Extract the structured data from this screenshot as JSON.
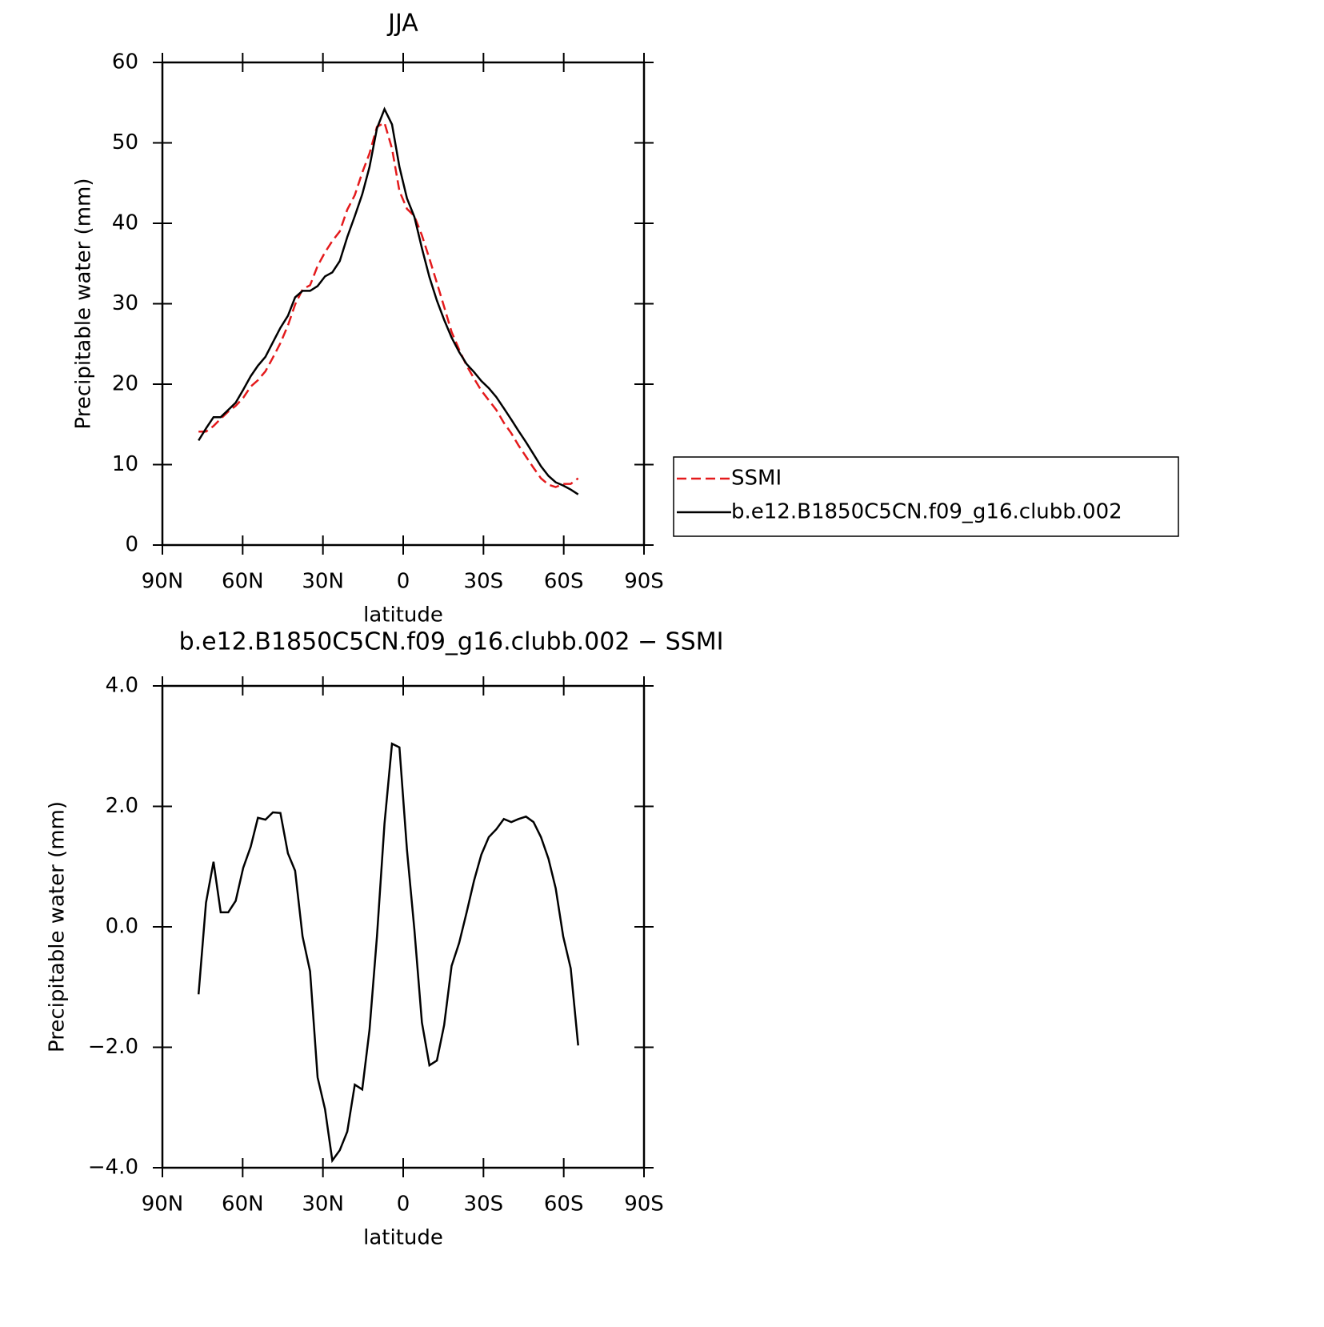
{
  "chart_data": [
    {
      "type": "line",
      "title": "JJA",
      "xlabel": "latitude",
      "ylabel": "Precipitable water (mm)",
      "x": [
        76.5,
        73.7,
        70.9,
        68.2,
        65.4,
        62.6,
        59.8,
        57.0,
        54.3,
        51.5,
        48.7,
        45.9,
        43.1,
        40.4,
        37.6,
        34.8,
        32.0,
        29.2,
        26.5,
        23.7,
        20.9,
        18.1,
        15.3,
        12.6,
        9.8,
        7.0,
        4.2,
        1.4,
        -1.4,
        -4.2,
        -7.0,
        -9.8,
        -12.6,
        -15.3,
        -18.1,
        -20.9,
        -23.7,
        -26.5,
        -29.2,
        -32.0,
        -34.8,
        -37.6,
        -40.4,
        -43.1,
        -45.9,
        -48.7,
        -51.5,
        -54.3,
        -57.0,
        -59.8,
        -62.6,
        -65.4
      ],
      "series": [
        {
          "name": "SSMI",
          "color": "#e41a1c",
          "dashed": true,
          "values": [
            14.1,
            14.1,
            14.8,
            15.7,
            16.6,
            17.3,
            18.3,
            19.7,
            20.5,
            21.6,
            23.3,
            25.1,
            27.3,
            29.9,
            31.8,
            32.3,
            34.7,
            36.4,
            37.8,
            39.0,
            41.7,
            43.5,
            46.3,
            48.7,
            52.0,
            52.5,
            49.3,
            44.0,
            41.8,
            40.9,
            38.5,
            35.6,
            32.6,
            29.6,
            26.5,
            24.3,
            22.3,
            20.7,
            19.2,
            18.0,
            16.8,
            15.2,
            13.9,
            12.4,
            11.0,
            9.6,
            8.3,
            7.5,
            7.2,
            7.6,
            7.6,
            8.3
          ]
        },
        {
          "name": "b.e12.B1850C5CN.f09_g16.clubb.002",
          "color": "#000000",
          "dashed": false,
          "values": [
            13.0,
            14.5,
            15.9,
            15.9,
            16.8,
            17.7,
            19.3,
            21.0,
            22.3,
            23.4,
            25.2,
            27.0,
            28.5,
            30.8,
            31.6,
            31.6,
            32.2,
            33.4,
            33.9,
            35.3,
            38.3,
            40.9,
            43.6,
            47.0,
            51.8,
            54.2,
            52.3,
            47.0,
            43.1,
            40.8,
            36.9,
            33.3,
            30.4,
            28.0,
            25.8,
            24.0,
            22.5,
            21.5,
            20.4,
            19.5,
            18.4,
            17.0,
            15.6,
            14.2,
            12.8,
            11.3,
            9.8,
            8.6,
            7.8,
            7.4,
            6.9,
            6.3
          ]
        }
      ],
      "xlim": [
        90,
        -90
      ],
      "xticks": [
        {
          "value": 90,
          "label": "90N"
        },
        {
          "value": 60,
          "label": "60N"
        },
        {
          "value": 30,
          "label": "30N"
        },
        0,
        {
          "value": -30,
          "label": "30S"
        },
        {
          "value": -60,
          "label": "60S"
        },
        {
          "value": -90,
          "label": "90S"
        }
      ],
      "ylim": [
        0,
        60
      ],
      "yticks": [
        0,
        10,
        20,
        30,
        40,
        50,
        60
      ],
      "legend": "right"
    },
    {
      "type": "line",
      "title": "b.e12.B1850C5CN.f09_g16.clubb.002 − SSMI",
      "xlabel": "latitude",
      "ylabel": "Precipitable water (mm)",
      "x": [
        76.5,
        73.7,
        70.9,
        68.2,
        65.4,
        62.6,
        59.8,
        57.0,
        54.3,
        51.5,
        48.7,
        45.9,
        43.1,
        40.4,
        37.6,
        34.8,
        32.0,
        29.2,
        26.5,
        23.7,
        20.9,
        18.1,
        15.3,
        12.6,
        9.8,
        7.0,
        4.2,
        1.4,
        -1.4,
        -4.2,
        -7.0,
        -9.8,
        -12.6,
        -15.3,
        -18.1,
        -20.9,
        -23.7,
        -26.5,
        -29.2,
        -32.0,
        -34.8,
        -37.6,
        -40.4,
        -43.1,
        -45.9,
        -48.7,
        -51.5,
        -54.3,
        -57.0,
        -59.8,
        -62.6,
        -65.4
      ],
      "series": [
        {
          "color": "#000000",
          "dashed": false,
          "values": [
            -1.12,
            0.4,
            1.08,
            0.24,
            0.24,
            0.43,
            0.98,
            1.33,
            1.81,
            1.78,
            1.9,
            1.89,
            1.22,
            0.93,
            -0.16,
            -0.74,
            -2.5,
            -3.03,
            -3.88,
            -3.71,
            -3.4,
            -2.62,
            -2.7,
            -1.71,
            -0.16,
            1.71,
            3.04,
            2.98,
            1.28,
            -0.05,
            -1.59,
            -2.3,
            -2.22,
            -1.63,
            -0.65,
            -0.27,
            0.24,
            0.77,
            1.2,
            1.49,
            1.62,
            1.79,
            1.74,
            1.79,
            1.83,
            1.74,
            1.49,
            1.13,
            0.64,
            -0.16,
            -0.69,
            -1.97
          ]
        }
      ],
      "xlim": [
        90,
        -90
      ],
      "xticks": [
        {
          "value": 90,
          "label": "90N"
        },
        {
          "value": 60,
          "label": "60N"
        },
        {
          "value": 30,
          "label": "30N"
        },
        0,
        {
          "value": -30,
          "label": "30S"
        },
        {
          "value": -60,
          "label": "60S"
        },
        {
          "value": -90,
          "label": "90S"
        }
      ],
      "ylim": [
        -4,
        4
      ],
      "yticks": [
        {
          "value": -4,
          "label": "−4.0"
        },
        {
          "value": -2,
          "label": "−2.0"
        },
        {
          "value": 0,
          "label": "0.0"
        },
        {
          "value": 2,
          "label": "2.0"
        },
        {
          "value": 4,
          "label": "4.0"
        }
      ]
    }
  ]
}
